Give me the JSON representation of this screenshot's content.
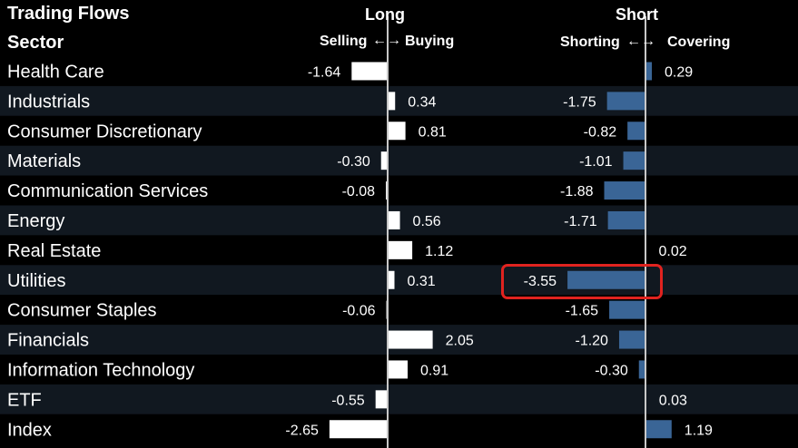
{
  "title": "Trading Flows",
  "sector_header": "Sector",
  "long_header": "Long",
  "long_left": "Selling",
  "long_right": "Buying",
  "short_header": "Short",
  "short_left": "Shorting",
  "short_right": "Covering",
  "arrow": "←→",
  "colors": {
    "long_bar": "#ffffff",
    "short_bar": "#3a6596",
    "highlight": "#e0231f",
    "row_dark": "#000000",
    "row_alt": "#111820"
  },
  "chart_data": {
    "type": "bar",
    "categories": [
      "Health Care",
      "Industrials",
      "Consumer Discretionary",
      "Materials",
      "Communication Services",
      "Energy",
      "Real Estate",
      "Utilities",
      "Consumer Staples",
      "Financials",
      "Information Technology",
      "ETF",
      "Index"
    ],
    "series": [
      {
        "name": "Long",
        "values": [
          -1.64,
          0.34,
          0.81,
          -0.3,
          -0.08,
          0.56,
          1.12,
          0.31,
          -0.06,
          2.05,
          0.91,
          -0.55,
          -2.65
        ],
        "labels": [
          "-1.64",
          "0.34",
          "0.81",
          "-0.30",
          "-0.08",
          "0.56",
          "1.12",
          "0.31",
          "-0.06",
          "2.05",
          "0.91",
          "-0.55",
          "-2.65"
        ]
      },
      {
        "name": "Short",
        "values": [
          0.29,
          -1.75,
          -0.82,
          -1.01,
          -1.88,
          -1.71,
          0.02,
          -3.55,
          -1.65,
          -1.2,
          -0.3,
          0.03,
          1.19
        ],
        "labels": [
          "0.29",
          "-1.75",
          "-0.82",
          "-1.01",
          "-1.88",
          "-1.71",
          "0.02",
          "-3.55",
          "-1.65",
          "-1.20",
          "-0.30",
          "0.03",
          "1.19"
        ]
      }
    ],
    "highlighted": {
      "series": "Short",
      "category": "Utilities"
    }
  }
}
